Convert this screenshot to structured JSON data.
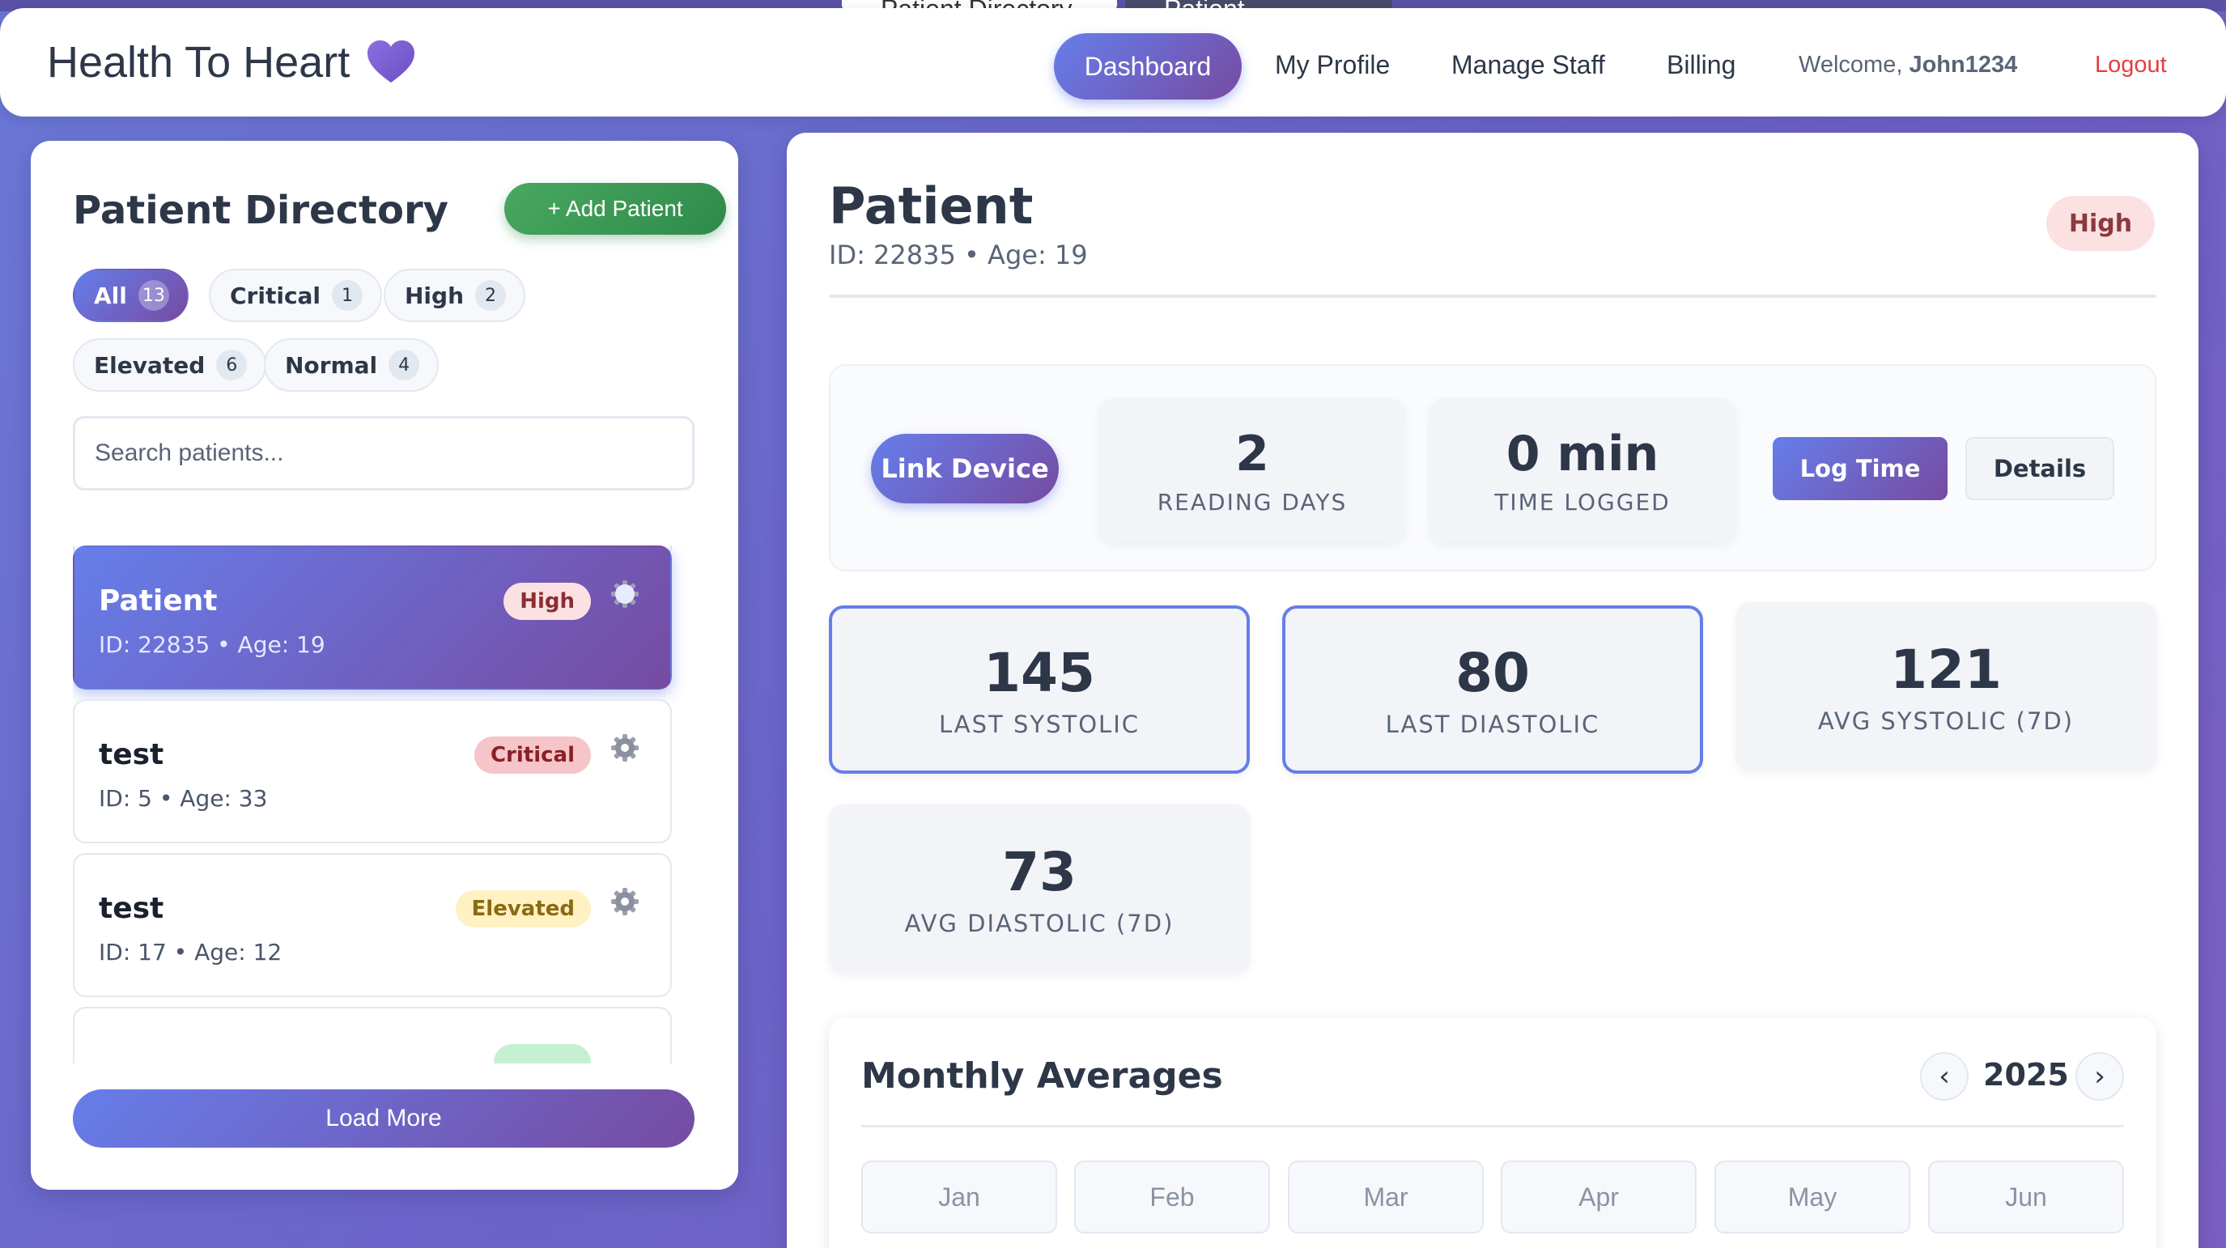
{
  "browser_tabs": [
    "Patient Directory",
    "Patient Manager"
  ],
  "nav": {
    "brand": "Health To Heart",
    "items": [
      "Dashboard",
      "My Profile",
      "Manage Staff",
      "Billing"
    ],
    "welcome_prefix": "Welcome,",
    "username": "John1234",
    "logout": "Logout"
  },
  "sidebar": {
    "title": "Patient Directory",
    "add_button": "+ Add Patient",
    "filters": [
      {
        "label": "All",
        "count": "13"
      },
      {
        "label": "Critical",
        "count": "1"
      },
      {
        "label": "High",
        "count": "2"
      },
      {
        "label": "Elevated",
        "count": "6"
      },
      {
        "label": "Normal",
        "count": "4"
      }
    ],
    "search_placeholder": "Search patients...",
    "patients": [
      {
        "name": "Patient",
        "meta": "ID: 22835 • Age: 19",
        "status": "High"
      },
      {
        "name": "test",
        "meta": "ID: 5 • Age: 33",
        "status": "Critical"
      },
      {
        "name": "test",
        "meta": "ID: 17 • Age: 12",
        "status": "Elevated"
      }
    ],
    "load_more": "Load More"
  },
  "main": {
    "title": "Patient",
    "meta": "ID: 22835 • Age: 19",
    "risk_badge": "High",
    "link_device": "Link Device",
    "reading_days": {
      "value": "2",
      "label": "READING DAYS"
    },
    "time_logged": {
      "value": "0 min",
      "label": "TIME LOGGED"
    },
    "log_time": "Log Time",
    "details": "Details",
    "stats": [
      {
        "value": "145",
        "label": "LAST SYSTOLIC"
      },
      {
        "value": "80",
        "label": "LAST DIASTOLIC"
      },
      {
        "value": "121",
        "label": "AVG SYSTOLIC (7D)"
      },
      {
        "value": "73",
        "label": "AVG DIASTOLIC (7D)"
      }
    ],
    "monthly": {
      "title": "Monthly Averages",
      "prev": "‹",
      "next": "›",
      "year": "2025",
      "months": [
        "Jan",
        "Feb",
        "Mar",
        "Apr",
        "May",
        "Jun"
      ]
    }
  },
  "colors": {
    "accent_start": "#667eea",
    "accent_end": "#764ba2",
    "logout": "#e53e3e",
    "add_patient": "#48a860"
  },
  "icons": {
    "brand": "heart-icon",
    "patient_settings": "gear-icon"
  }
}
